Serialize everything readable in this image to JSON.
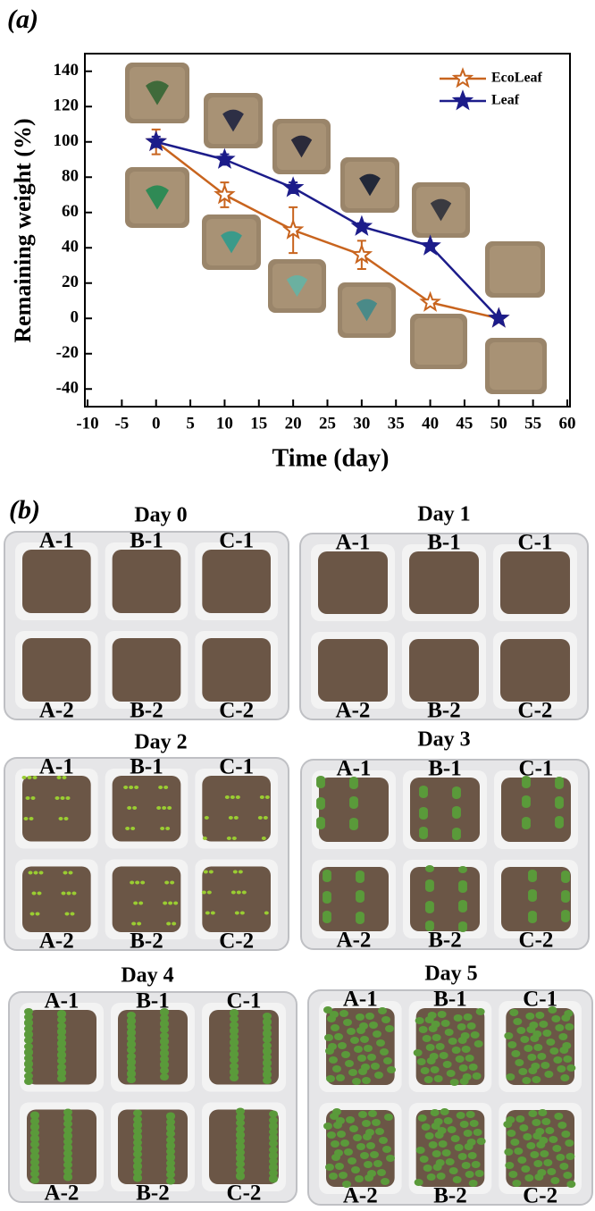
{
  "chart_data": {
    "type": "line",
    "panel_label": "(a)",
    "x_label": "Time (day)",
    "y_label": "Remaining weight (%)",
    "x": [
      0,
      10,
      20,
      30,
      40,
      50
    ],
    "series": [
      {
        "name": "EcoLeaf",
        "color": "#c8641e",
        "marker": "hollow-star",
        "values": [
          100,
          70,
          50,
          36,
          9,
          0
        ],
        "errors": [
          7,
          7,
          13,
          8,
          1,
          0
        ]
      },
      {
        "name": "Leaf",
        "color": "#1c1c8a",
        "marker": "filled-star",
        "values": [
          100,
          90,
          74,
          52,
          41,
          0
        ],
        "errors": [
          3,
          3,
          3,
          2,
          1,
          0
        ]
      }
    ],
    "xlim": [
      -10,
      60
    ],
    "xticks": [
      -10,
      -5,
      0,
      5,
      10,
      15,
      20,
      25,
      30,
      35,
      40,
      45,
      50,
      55,
      60
    ],
    "ylim": [
      -50,
      150
    ],
    "yticks": [
      -40,
      -20,
      0,
      20,
      40,
      60,
      80,
      100,
      120,
      140
    ],
    "legend": "top-right"
  },
  "panel_b": {
    "panel_label": "(b)",
    "days": [
      "Day 0",
      "Day 1",
      "Day 2",
      "Day 3",
      "Day 4",
      "Day 5"
    ],
    "wells": [
      "A-1",
      "B-1",
      "C-1",
      "A-2",
      "B-2",
      "C-2"
    ]
  }
}
